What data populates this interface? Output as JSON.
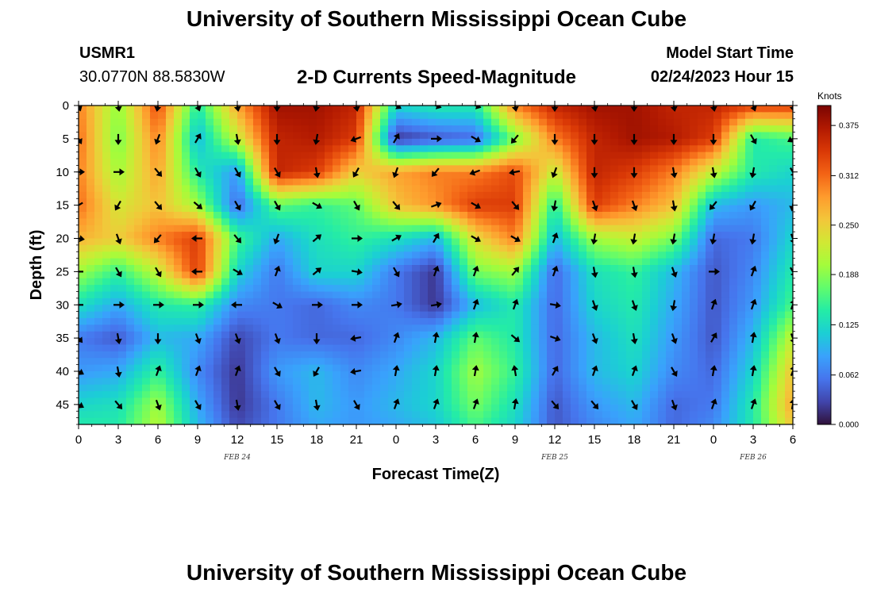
{
  "header": {
    "title": "University of Southern Mississippi Ocean Cube",
    "station_id": "USMR1",
    "coords": "30.0770N  88.5830W",
    "subtitle": "2-D Currents Speed-Magnitude",
    "model_label": "Model Start Time",
    "model_date": "02/24/2023 Hour 15"
  },
  "footer": {
    "title": "University of Southern Mississippi Ocean Cube"
  },
  "chart_data": {
    "type": "heatmap",
    "title": "2-D Currents Speed-Magnitude",
    "xlabel": "Forecast Time(Z)",
    "ylabel": "Depth (ft)",
    "x_tick_labels": [
      "0",
      "3",
      "6",
      "9",
      "12",
      "15",
      "18",
      "21",
      "0",
      "3",
      "6",
      "9",
      "12",
      "15",
      "18",
      "21",
      "0",
      "3",
      "6"
    ],
    "x_hours": [
      0,
      3,
      6,
      9,
      12,
      15,
      18,
      21,
      24,
      27,
      30,
      33,
      36,
      39,
      42,
      45,
      48,
      51,
      54
    ],
    "xlim": [
      0,
      54
    ],
    "date_labels": [
      {
        "text": "FEB 24",
        "hour": 12
      },
      {
        "text": "FEB 25",
        "hour": 36
      },
      {
        "text": "FEB 26",
        "hour": 51
      }
    ],
    "y_tick_labels": [
      "0",
      "5",
      "10",
      "15",
      "20",
      "25",
      "30",
      "35",
      "40",
      "45"
    ],
    "y_values": [
      0,
      5,
      10,
      15,
      20,
      25,
      30,
      35,
      40,
      45
    ],
    "ylim": [
      0,
      48
    ],
    "y_inverted": true,
    "colorbar": {
      "unit": "Knots",
      "range": [
        0,
        0.4
      ],
      "tick_labels": [
        "0.000",
        "0.062",
        "0.125",
        "0.188",
        "0.250",
        "0.312",
        "0.375"
      ],
      "tick_values": [
        0.0,
        0.062,
        0.125,
        0.188,
        0.25,
        0.312,
        0.375
      ],
      "colormap": [
        "#30123b",
        "#4145ab",
        "#4675ed",
        "#39a2fc",
        "#1bcfd4",
        "#24eca6",
        "#61fc6c",
        "#a4fc3b",
        "#d1e834",
        "#f3c63a",
        "#fe9b2d",
        "#f36315",
        "#d93806",
        "#b11901",
        "#7a0402"
      ]
    },
    "depths_ft": [
      0,
      5,
      10,
      15,
      20,
      25,
      30,
      35,
      40,
      45,
      48
    ],
    "hours": [
      0,
      3,
      6,
      9,
      12,
      15,
      18,
      21,
      24,
      27,
      30,
      33,
      36,
      39,
      42,
      45,
      48,
      51,
      54
    ],
    "speed_knots": [
      [
        0.3,
        0.19,
        0.33,
        0.14,
        0.28,
        0.38,
        0.38,
        0.36,
        0.12,
        0.14,
        0.14,
        0.3,
        0.36,
        0.38,
        0.38,
        0.36,
        0.36,
        0.34,
        0.34
      ],
      [
        0.31,
        0.18,
        0.3,
        0.1,
        0.22,
        0.36,
        0.37,
        0.34,
        0.02,
        0.04,
        0.05,
        0.18,
        0.3,
        0.36,
        0.38,
        0.37,
        0.34,
        0.14,
        0.16
      ],
      [
        0.3,
        0.2,
        0.28,
        0.14,
        0.08,
        0.36,
        0.34,
        0.25,
        0.28,
        0.3,
        0.3,
        0.33,
        0.22,
        0.36,
        0.34,
        0.3,
        0.22,
        0.14,
        0.12
      ],
      [
        0.31,
        0.23,
        0.26,
        0.2,
        0.05,
        0.17,
        0.15,
        0.17,
        0.26,
        0.29,
        0.34,
        0.34,
        0.14,
        0.34,
        0.3,
        0.26,
        0.1,
        0.08,
        0.1
      ],
      [
        0.27,
        0.25,
        0.3,
        0.34,
        0.16,
        0.09,
        0.13,
        0.15,
        0.13,
        0.1,
        0.24,
        0.3,
        0.1,
        0.2,
        0.22,
        0.18,
        0.05,
        0.06,
        0.12
      ],
      [
        0.2,
        0.15,
        0.22,
        0.34,
        0.12,
        0.06,
        0.12,
        0.12,
        0.06,
        0.02,
        0.18,
        0.2,
        0.05,
        0.13,
        0.15,
        0.1,
        0.04,
        0.07,
        0.14
      ],
      [
        0.13,
        0.09,
        0.14,
        0.15,
        0.07,
        0.06,
        0.05,
        0.07,
        0.06,
        0.02,
        0.1,
        0.14,
        0.05,
        0.12,
        0.14,
        0.09,
        0.04,
        0.08,
        0.16
      ],
      [
        0.06,
        0.04,
        0.1,
        0.09,
        0.03,
        0.06,
        0.05,
        0.05,
        0.07,
        0.1,
        0.17,
        0.14,
        0.05,
        0.1,
        0.13,
        0.08,
        0.04,
        0.1,
        0.22
      ],
      [
        0.08,
        0.09,
        0.15,
        0.07,
        0.02,
        0.08,
        0.1,
        0.07,
        0.09,
        0.12,
        0.2,
        0.15,
        0.05,
        0.1,
        0.12,
        0.07,
        0.05,
        0.12,
        0.26
      ],
      [
        0.12,
        0.13,
        0.2,
        0.09,
        0.02,
        0.06,
        0.1,
        0.08,
        0.1,
        0.12,
        0.18,
        0.13,
        0.04,
        0.08,
        0.1,
        0.05,
        0.06,
        0.14,
        0.28
      ],
      [
        0.14,
        0.14,
        0.21,
        0.1,
        0.03,
        0.06,
        0.09,
        0.08,
        0.09,
        0.11,
        0.16,
        0.12,
        0.04,
        0.07,
        0.09,
        0.05,
        0.07,
        0.14,
        0.26
      ]
    ],
    "arrow_grid": {
      "hours": [
        0,
        3,
        6,
        9,
        12,
        15,
        18,
        21,
        24,
        27,
        30,
        33,
        36,
        39,
        42,
        45,
        48,
        51,
        54
      ],
      "depths_ft": [
        0,
        5,
        10,
        15,
        20,
        25,
        30,
        35,
        40,
        45
      ]
    },
    "direction_deg": [
      [
        160,
        170,
        190,
        160,
        170,
        180,
        190,
        170,
        120,
        110,
        110,
        170,
        180,
        170,
        180,
        170,
        170,
        160,
        170
      ],
      [
        150,
        180,
        200,
        30,
        170,
        180,
        190,
        250,
        30,
        90,
        120,
        220,
        180,
        180,
        180,
        180,
        180,
        150,
        240
      ],
      [
        90,
        90,
        140,
        150,
        150,
        150,
        170,
        210,
        200,
        220,
        250,
        260,
        200,
        180,
        180,
        170,
        170,
        190,
        150
      ],
      [
        240,
        210,
        140,
        130,
        150,
        150,
        120,
        150,
        140,
        70,
        120,
        140,
        190,
        160,
        160,
        170,
        220,
        210,
        190
      ],
      [
        100,
        160,
        220,
        270,
        140,
        200,
        50,
        90,
        60,
        30,
        120,
        120,
        20,
        190,
        190,
        190,
        190,
        190,
        160
      ],
      [
        270,
        150,
        150,
        270,
        120,
        20,
        50,
        100,
        150,
        20,
        20,
        40,
        20,
        170,
        170,
        160,
        90,
        20,
        150
      ],
      [
        270,
        90,
        90,
        90,
        270,
        120,
        90,
        90,
        80,
        80,
        20,
        20,
        100,
        160,
        160,
        190,
        20,
        20,
        20
      ],
      [
        140,
        170,
        180,
        160,
        160,
        160,
        180,
        260,
        20,
        10,
        10,
        130,
        110,
        160,
        170,
        160,
        30,
        10,
        160
      ],
      [
        120,
        170,
        20,
        20,
        20,
        150,
        210,
        260,
        10,
        10,
        10,
        350,
        30,
        20,
        20,
        150,
        10,
        10,
        20
      ],
      [
        120,
        140,
        160,
        150,
        170,
        150,
        170,
        150,
        20,
        20,
        20,
        10,
        140,
        140,
        150,
        160,
        20,
        20,
        10
      ]
    ]
  }
}
